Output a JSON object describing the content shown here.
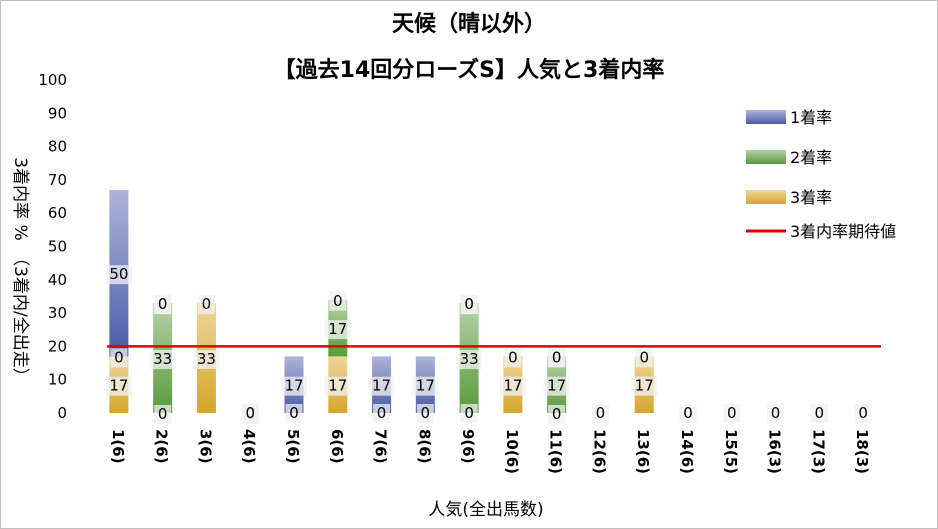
{
  "chart_data": {
    "type": "bar",
    "stacked": true,
    "title": "天候（晴以外）",
    "subtitle": "【過去14回分ローズS】人気と3着内率",
    "xlabel": "人気(全出馬数)",
    "ylabel": "3着内率 %　（3着内/全出走）",
    "ylim": [
      0,
      100
    ],
    "yticks": [
      0,
      10,
      20,
      30,
      40,
      50,
      60,
      70,
      80,
      90,
      100
    ],
    "categories": [
      "1(6)",
      "2(6)",
      "3(6)",
      "4(6)",
      "5(6)",
      "6(6)",
      "7(6)",
      "8(6)",
      "9(6)",
      "10(6)",
      "11(6)",
      "12(6)",
      "13(6)",
      "14(6)",
      "15(5)",
      "16(3)",
      "17(3)",
      "18(3)"
    ],
    "series": [
      {
        "name": "1着率",
        "color": "#4a5aa8",
        "values": [
          50,
          0,
          0,
          0,
          17,
          0,
          17,
          17,
          0,
          0,
          0,
          0,
          0,
          0,
          0,
          0,
          0,
          0
        ],
        "labels": [
          "50",
          "0",
          "",
          "0",
          "17",
          "",
          "17",
          "17",
          "0",
          "",
          "0",
          "",
          "",
          "",
          "",
          "",
          "",
          ""
        ]
      },
      {
        "name": "2着率",
        "color": "#5a9a3c",
        "values": [
          0,
          33,
          0,
          0,
          0,
          17,
          0,
          0,
          33,
          0,
          17,
          0,
          0,
          0,
          0,
          0,
          0,
          0
        ],
        "labels": [
          "0",
          "33",
          "",
          "",
          "",
          "17",
          "",
          "",
          "33",
          "",
          "17",
          "",
          "",
          "",
          "",
          "",
          "",
          ""
        ]
      },
      {
        "name": "3着率",
        "color": "#d6a52a",
        "values": [
          17,
          0,
          33,
          0,
          0,
          17,
          0,
          0,
          0,
          17,
          0,
          0,
          17,
          0,
          0,
          0,
          0,
          0
        ],
        "labels": [
          "17",
          "0",
          "33",
          "",
          "",
          "17",
          "",
          "",
          "",
          "17",
          "0",
          "",
          "17",
          "",
          "",
          "",
          "",
          ""
        ]
      },
      {
        "name": "3着内率期待値",
        "type": "line",
        "color": "#e00000",
        "value": 20
      }
    ],
    "top_labels": [
      "",
      "0",
      "0",
      "",
      "",
      "0",
      "",
      "",
      "0",
      "0",
      "0",
      "",
      "0",
      "",
      "",
      "",
      "",
      ""
    ],
    "zero_labels": [
      "",
      "",
      "",
      "0",
      "0",
      "",
      "0",
      "0",
      "0",
      "",
      "",
      "0",
      "",
      "0",
      "0",
      "0",
      "0",
      "0"
    ],
    "legend_position": "right",
    "grid": false
  }
}
